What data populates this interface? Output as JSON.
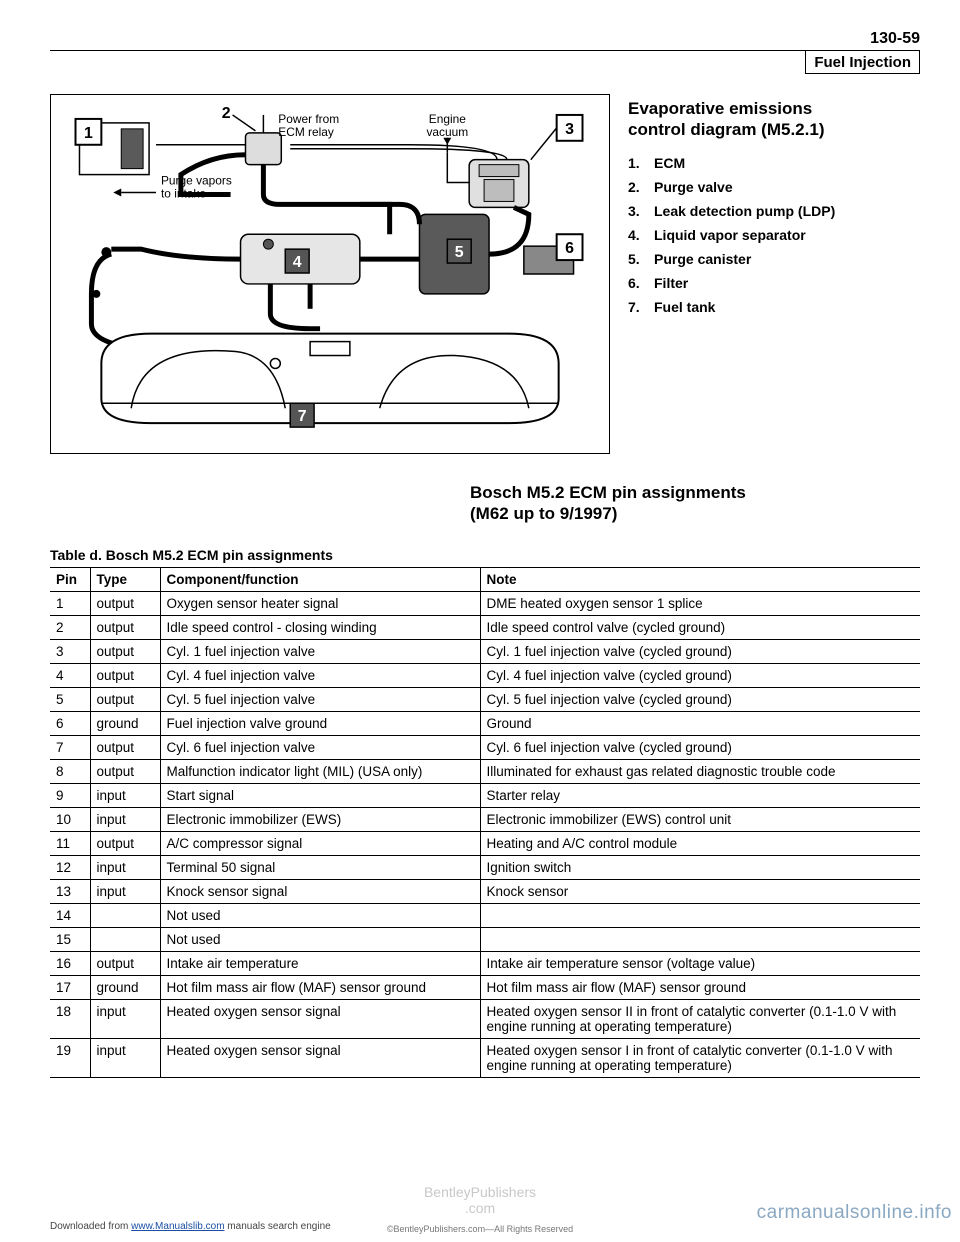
{
  "page_number": "130-59",
  "header_title": "Fuel Injection",
  "diagram": {
    "labels": {
      "power_from": "Power from",
      "ecm_relay": "ECM relay",
      "engine": "Engine",
      "vacuum": "vacuum",
      "purge_vapors": "Purge vapors",
      "to_intake": "to intake"
    },
    "callouts": {
      "n1": "1",
      "n2": "2",
      "n3": "3",
      "n4": "4",
      "n5": "5",
      "n6": "6",
      "n7": "7"
    }
  },
  "legend": {
    "title_l1": "Evaporative emissions",
    "title_l2": "control diagram (M5.2.1)",
    "items": [
      {
        "num": "1.",
        "txt": "ECM"
      },
      {
        "num": "2.",
        "txt": "Purge valve"
      },
      {
        "num": "3.",
        "txt": "Leak detection pump (LDP)"
      },
      {
        "num": "4.",
        "txt": "Liquid vapor separator"
      },
      {
        "num": "5.",
        "txt": "Purge canister"
      },
      {
        "num": "6.",
        "txt": "Filter"
      },
      {
        "num": "7.",
        "txt": "Fuel tank"
      }
    ]
  },
  "section_heading_l1": "Bosch M5.2 ECM pin assignments",
  "section_heading_l2": "(M62 up to 9/1997)",
  "table": {
    "caption": "Table d. Bosch M5.2 ECM pin assignments",
    "headers": {
      "pin": "Pin",
      "type": "Type",
      "comp": "Component/function",
      "note": "Note"
    },
    "rows": [
      {
        "pin": "1",
        "type": "output",
        "comp": "Oxygen sensor heater signal",
        "note": "DME heated oxygen sensor 1 splice"
      },
      {
        "pin": "2",
        "type": "output",
        "comp": "Idle speed control - closing winding",
        "note": "Idle speed control valve (cycled ground)"
      },
      {
        "pin": "3",
        "type": "output",
        "comp": "Cyl. 1 fuel injection valve",
        "note": "Cyl. 1 fuel injection valve (cycled ground)"
      },
      {
        "pin": "4",
        "type": "output",
        "comp": "Cyl. 4 fuel injection valve",
        "note": "Cyl. 4 fuel injection valve (cycled ground)"
      },
      {
        "pin": "5",
        "type": "output",
        "comp": "Cyl. 5 fuel injection valve",
        "note": "Cyl. 5 fuel injection valve (cycled ground)"
      },
      {
        "pin": "6",
        "type": "ground",
        "comp": "Fuel injection valve ground",
        "note": "Ground"
      },
      {
        "pin": "7",
        "type": "output",
        "comp": "Cyl. 6 fuel injection valve",
        "note": "Cyl. 6 fuel injection valve (cycled ground)"
      },
      {
        "pin": "8",
        "type": "output",
        "comp": "Malfunction indicator light (MIL) (USA only)",
        "note": "Illuminated for exhaust gas related diagnostic trouble code"
      },
      {
        "pin": "9",
        "type": "input",
        "comp": "Start signal",
        "note": "Starter relay"
      },
      {
        "pin": "10",
        "type": "input",
        "comp": "Electronic immobilizer (EWS)",
        "note": "Electronic immobilizer (EWS) control unit"
      },
      {
        "pin": "11",
        "type": "output",
        "comp": "A/C compressor signal",
        "note": "Heating and A/C control module"
      },
      {
        "pin": "12",
        "type": "input",
        "comp": "Terminal 50 signal",
        "note": "Ignition switch"
      },
      {
        "pin": "13",
        "type": "input",
        "comp": "Knock sensor signal",
        "note": "Knock sensor"
      },
      {
        "pin": "14",
        "type": "",
        "comp": "Not used",
        "note": ""
      },
      {
        "pin": "15",
        "type": "",
        "comp": "Not used",
        "note": ""
      },
      {
        "pin": "16",
        "type": "output",
        "comp": "Intake air temperature",
        "note": "Intake air temperature sensor (voltage value)"
      },
      {
        "pin": "17",
        "type": "ground",
        "comp": "Hot film mass air flow (MAF) sensor ground",
        "note": "Hot film mass air flow (MAF) sensor ground"
      },
      {
        "pin": "18",
        "type": "input",
        "comp": "Heated oxygen sensor signal",
        "note": "Heated oxygen sensor II in front of catalytic converter (0.1-1.0 V with engine running at operating temperature)"
      },
      {
        "pin": "19",
        "type": "input",
        "comp": "Heated oxygen sensor signal",
        "note": "Heated oxygen sensor I in front of catalytic converter (0.1-1.0 V with engine running at operating temperature)"
      }
    ]
  },
  "footer": {
    "center_wm_l1": "BentleyPublishers",
    "center_wm_l2": ".com",
    "center_small": "©BentleyPublishers.com—All Rights Reserved",
    "left_pre": "Downloaded from ",
    "left_link": "www.Manualslib.com",
    "left_post": " manuals search engine",
    "right_wm": "carmanualsonline.info"
  }
}
